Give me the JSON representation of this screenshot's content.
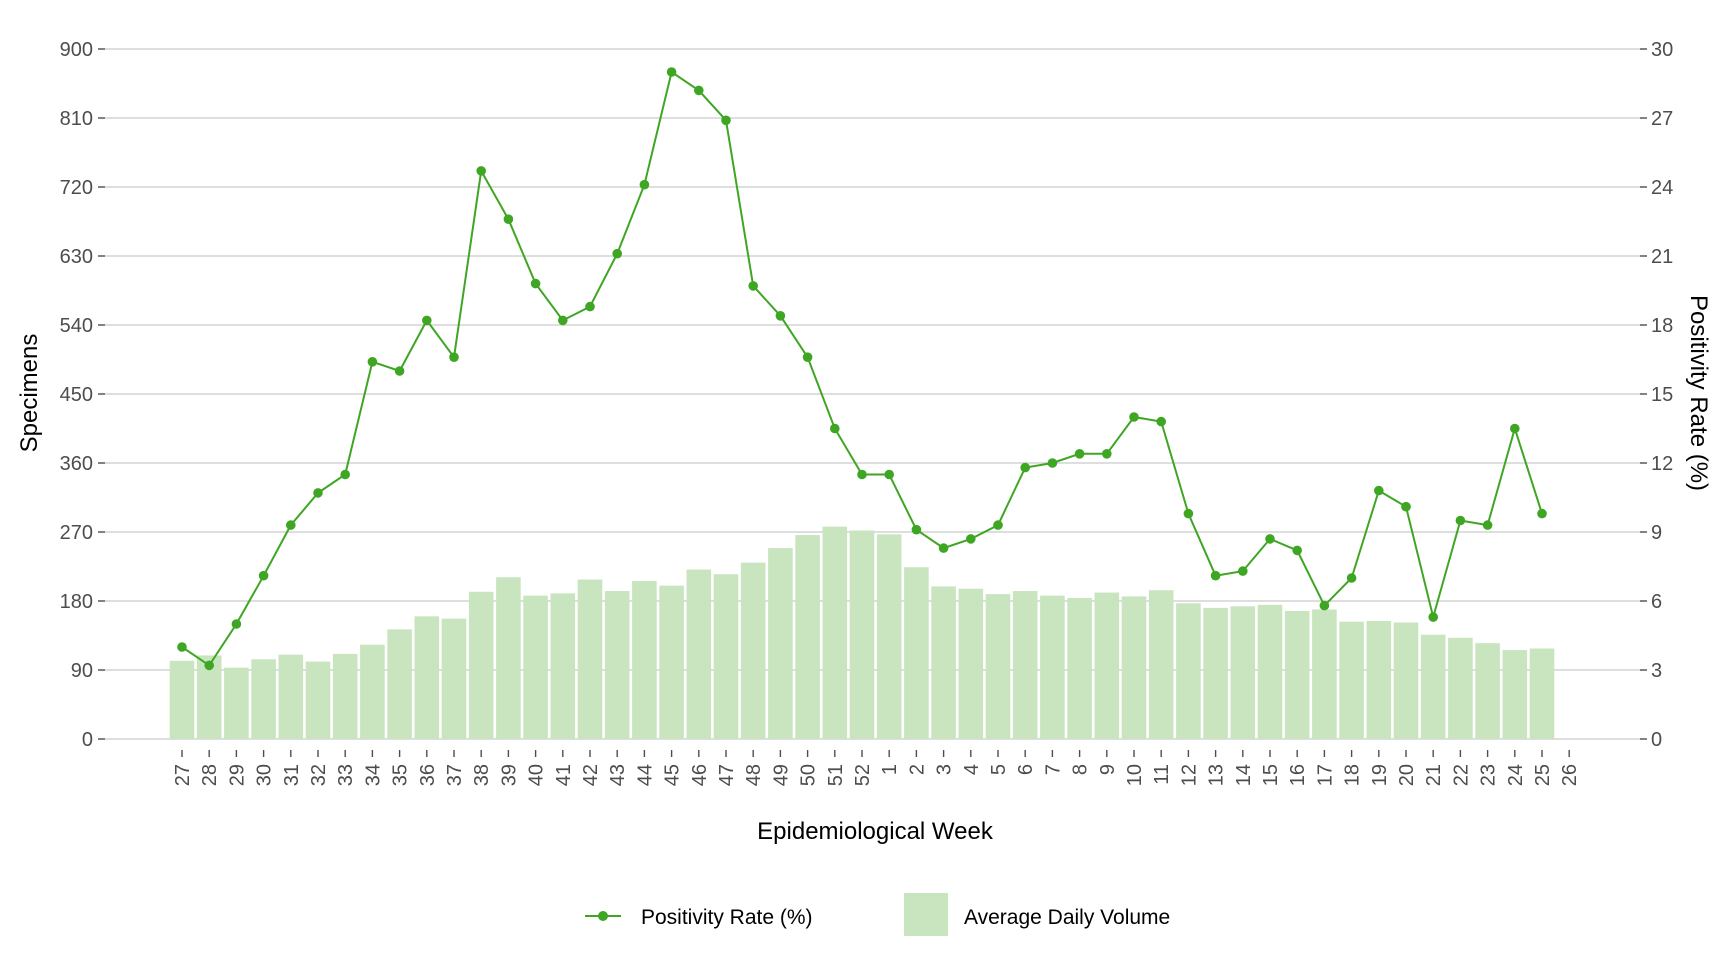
{
  "chart_data": {
    "type": "bar+line",
    "xlabel": "Epidemiological Week",
    "ylabel_left": "Specimens",
    "ylabel_right": "Positivity Rate (%)",
    "ylim_left": [
      0,
      900
    ],
    "ylim_right": [
      0,
      30
    ],
    "yticks_left": [
      0,
      90,
      180,
      270,
      360,
      450,
      540,
      630,
      720,
      810,
      900
    ],
    "yticks_right": [
      0,
      3,
      6,
      9,
      12,
      15,
      18,
      21,
      24,
      27,
      30
    ],
    "grid": true,
    "legend_position": "bottom",
    "categories": [
      "27",
      "28",
      "29",
      "30",
      "31",
      "32",
      "33",
      "34",
      "35",
      "36",
      "37",
      "38",
      "39",
      "40",
      "41",
      "42",
      "43",
      "44",
      "45",
      "46",
      "47",
      "48",
      "49",
      "50",
      "51",
      "52",
      "1",
      "2",
      "3",
      "4",
      "5",
      "6",
      "7",
      "8",
      "9",
      "10",
      "11",
      "12",
      "13",
      "14",
      "15",
      "16",
      "17",
      "18",
      "19",
      "20",
      "21",
      "22",
      "23",
      "24",
      "25",
      "26"
    ],
    "series": [
      {
        "name": "Average Daily Volume",
        "type": "bar",
        "axis": "left",
        "color": "#c8e5bf",
        "values": [
          102,
          109,
          93,
          104,
          110,
          101,
          111,
          123,
          143,
          160,
          157,
          192,
          211,
          187,
          190,
          208,
          193,
          206,
          200,
          221,
          215,
          230,
          249,
          266,
          277,
          272,
          267,
          224,
          199,
          196,
          189,
          193,
          187,
          184,
          191,
          186,
          194,
          177,
          171,
          173,
          175,
          167,
          169,
          153,
          154,
          152,
          136,
          132,
          125,
          116,
          118,
          null
        ]
      },
      {
        "name": "Positivity Rate (%)",
        "type": "line",
        "axis": "right",
        "color": "#3fa624",
        "values": [
          4.0,
          3.2,
          5.0,
          7.1,
          9.3,
          10.7,
          11.5,
          16.4,
          16.0,
          18.2,
          16.6,
          24.7,
          22.6,
          19.8,
          18.2,
          18.8,
          21.1,
          24.1,
          29.0,
          28.2,
          26.9,
          19.7,
          18.4,
          16.6,
          13.5,
          11.5,
          11.5,
          9.1,
          8.3,
          8.7,
          9.3,
          11.8,
          12.0,
          12.4,
          12.4,
          14.0,
          13.8,
          9.8,
          7.1,
          7.3,
          8.7,
          8.2,
          5.8,
          7.0,
          10.8,
          10.1,
          5.3,
          9.5,
          9.3,
          13.5,
          9.8,
          null
        ]
      }
    ]
  }
}
